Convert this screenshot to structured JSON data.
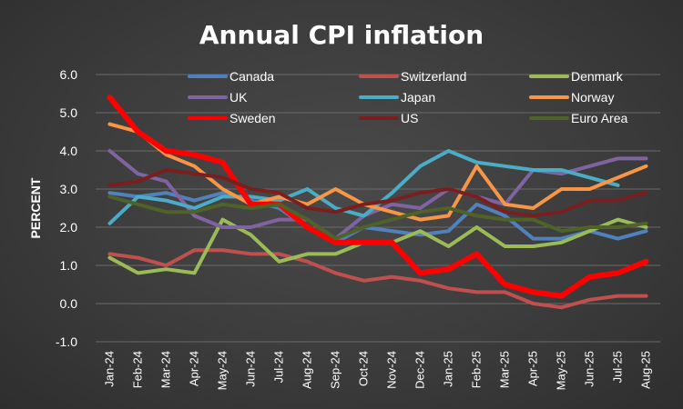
{
  "chart_data": {
    "type": "line",
    "title": "Annual CPI inflation",
    "ylabel": "PERCENT",
    "xlabel": "",
    "ylim": [
      -1.0,
      6.0
    ],
    "yticks": [
      "-1.0",
      "0.0",
      "1.0",
      "2.0",
      "3.0",
      "4.0",
      "5.0",
      "6.0"
    ],
    "grid": true,
    "legend_position": "top",
    "categories": [
      "Jan-24",
      "Feb-24",
      "Mar-24",
      "Apr-24",
      "May-24",
      "Jun-24",
      "Jul-24",
      "Aug-24",
      "Sep-24",
      "Oct-24",
      "Nov-24",
      "Dec-24",
      "Jan-25",
      "Feb-25",
      "Mar-25",
      "Apr-25",
      "May-25",
      "Jun-25",
      "Jul-25",
      "Aug-25"
    ],
    "series": [
      {
        "name": "Canada",
        "color": "#4f81bd",
        "width": 4,
        "values": [
          2.9,
          2.8,
          2.9,
          2.7,
          2.9,
          2.7,
          2.5,
          2.0,
          1.6,
          2.0,
          1.9,
          1.8,
          1.9,
          2.6,
          2.3,
          1.7,
          1.7,
          1.9,
          1.7,
          1.9
        ]
      },
      {
        "name": "Switzerland",
        "color": "#c0504d",
        "width": 4,
        "values": [
          1.3,
          1.2,
          1.0,
          1.4,
          1.4,
          1.3,
          1.3,
          1.1,
          0.8,
          0.6,
          0.7,
          0.6,
          0.4,
          0.3,
          0.3,
          0.0,
          -0.1,
          0.1,
          0.2,
          0.2
        ]
      },
      {
        "name": "Denmark",
        "color": "#9bbb59",
        "width": 4,
        "values": [
          1.2,
          0.8,
          0.9,
          0.8,
          2.2,
          1.8,
          1.1,
          1.3,
          1.3,
          1.6,
          1.6,
          1.9,
          1.5,
          2.0,
          1.5,
          1.5,
          1.6,
          1.9,
          2.2,
          2.0
        ]
      },
      {
        "name": "UK",
        "color": "#8064a2",
        "width": 4,
        "values": [
          4.0,
          3.4,
          3.2,
          2.3,
          2.0,
          2.0,
          2.2,
          2.2,
          1.7,
          2.3,
          2.6,
          2.5,
          3.0,
          2.8,
          2.6,
          3.5,
          3.4,
          3.6,
          3.8,
          3.8
        ]
      },
      {
        "name": "Japan",
        "color": "#4bacc6",
        "width": 4,
        "values": [
          2.1,
          2.8,
          2.7,
          2.5,
          2.8,
          2.8,
          2.7,
          3.0,
          2.5,
          2.3,
          2.9,
          3.6,
          4.0,
          3.7,
          3.6,
          3.5,
          3.5,
          3.3,
          3.1,
          null
        ]
      },
      {
        "name": "Norway",
        "color": "#f79646",
        "width": 4,
        "values": [
          4.7,
          4.5,
          3.9,
          3.6,
          3.0,
          2.6,
          2.8,
          2.6,
          3.0,
          2.6,
          2.4,
          2.2,
          2.3,
          3.6,
          2.6,
          2.5,
          3.0,
          3.0,
          3.3,
          3.6
        ]
      },
      {
        "name": "Sweden",
        "color": "#ff0000",
        "width": 6,
        "values": [
          5.4,
          4.5,
          4.0,
          3.9,
          3.7,
          2.6,
          2.6,
          2.0,
          1.6,
          1.6,
          1.6,
          0.8,
          0.9,
          1.3,
          0.5,
          0.3,
          0.2,
          0.7,
          0.8,
          1.1
        ]
      },
      {
        "name": "US",
        "color": "#7a1f1f",
        "width": 4,
        "values": [
          3.1,
          3.2,
          3.5,
          3.4,
          3.3,
          3.0,
          2.9,
          2.5,
          2.4,
          2.6,
          2.7,
          2.9,
          3.0,
          2.8,
          2.4,
          2.3,
          2.4,
          2.7,
          2.7,
          2.9
        ]
      },
      {
        "name": "Euro Area",
        "color": "#4f6228",
        "width": 4,
        "values": [
          2.8,
          2.6,
          2.4,
          2.4,
          2.6,
          2.5,
          2.6,
          2.2,
          1.7,
          2.0,
          2.2,
          2.4,
          2.5,
          2.3,
          2.2,
          2.2,
          1.9,
          2.0,
          2.0,
          2.1
        ]
      }
    ]
  }
}
